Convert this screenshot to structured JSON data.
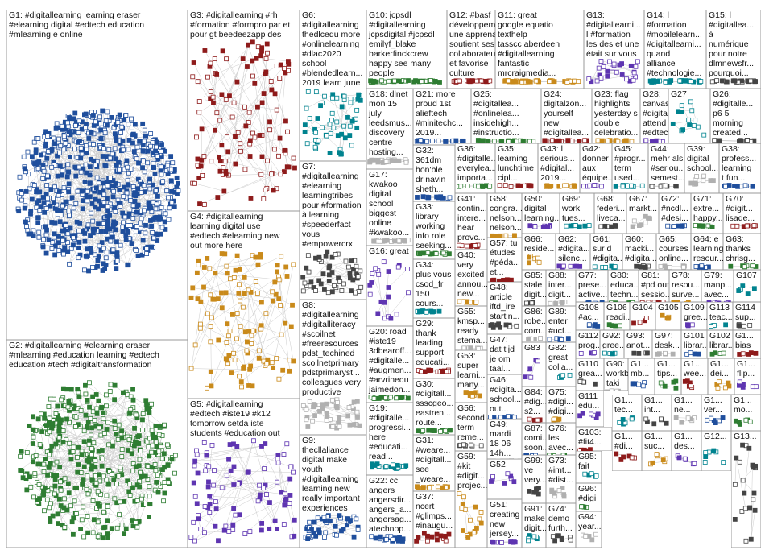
{
  "groups": [
    {
      "lines": [
        "G1: #digitallearning learning eraser",
        "#elearning digital #edtech education",
        "#mlearning e online"
      ]
    },
    {
      "lines": [
        "G2: #digitallearning #elearning eraser",
        "#mlearning #education learning #edtech",
        "education #tech #digitaltransformation"
      ]
    },
    {
      "lines": [
        "G3: #digitallearning #rh",
        "#formation #formpro par et",
        "pour gt beedeezapp des"
      ]
    },
    {
      "lines": [
        "G4: #digitallearning",
        "learning digital use",
        "#edtech #elearning new",
        "out more here"
      ]
    },
    {
      "lines": [
        "G5: #digitallearning",
        "#edtech #iste19 #k12",
        "tomorrow setda iste",
        "students #education out"
      ]
    },
    {
      "lines": [
        "G6:",
        "#digitallearning",
        "thedlcedu more",
        "#onlinelearning",
        "#dlac2020",
        "school",
        "#blendedlearn...",
        "2019 learn june"
      ]
    },
    {
      "lines": [
        "G7:",
        "#digitallearning",
        "#elearning",
        "learningtribes",
        "pour #formation",
        "à learning",
        "#speederfact",
        "vous",
        "#empowercrx"
      ]
    },
    {
      "lines": [
        "G8:",
        "#digitallearning",
        "#digitalliteracy",
        "#scoilnet",
        "#freeresources",
        "pdst_techined",
        "scoilnetprimary",
        "pdstprimaryst...",
        "colleagues very",
        "productive"
      ]
    },
    {
      "lines": [
        "G9:",
        "thecllaliance",
        "digital make",
        "youth",
        "#digitallearning",
        "learning new",
        "really important",
        "experiences"
      ]
    },
    {
      "lines": [
        "G10: jcpsdl",
        "#digitallearning",
        "jcpsdigital #jcpsdl",
        "emilyf_blake",
        "barkerfinckcrew",
        "happy see many",
        "people"
      ]
    },
    {
      "lines": [
        "G12: #basf",
        "développement",
        "une apprenante",
        "soutient ses",
        "collaborateurs",
        "et favorise",
        "culture"
      ]
    },
    {
      "lines": [
        "G11: great",
        "google equatio",
        "texthelp",
        "tasscc aberdeen",
        "#digitallearning",
        "fantastic",
        "mrcraigmedia..."
      ]
    },
    {
      "lines": [
        "G13:",
        "#digitallearni...",
        "l #formation",
        "les des et une",
        "était sur vous"
      ]
    },
    {
      "lines": [
        "G14: l",
        "#formation",
        "#mobilelearn...",
        "#digitallearni...",
        "quand",
        "alliance",
        "#technologie..."
      ]
    },
    {
      "lines": [
        "G15: l",
        "#digitallea...",
        "à",
        "numérique",
        "pour notre",
        "dlmnewsfr...",
        "pourquoi..."
      ]
    },
    {
      "lines": [
        "G18: dlnet",
        "mon 15",
        "july",
        "leedsmus...",
        "discovery",
        "centre",
        "hosting..."
      ]
    },
    {
      "lines": [
        "G21: more",
        "proud 1st",
        "alieftech",
        "#minitechc...",
        "2019..."
      ]
    },
    {
      "lines": [
        "G25:",
        "#digitallea...",
        "#onlinelea...",
        "insidehigh...",
        "#instructio..."
      ]
    },
    {
      "lines": [
        "G24:",
        "digitalzon...",
        "yourself",
        "new",
        "#digitallea..."
      ]
    },
    {
      "lines": [
        "G23: flag",
        "highlights",
        "yesterday s",
        "double",
        "celebratio..."
      ]
    },
    {
      "lines": [
        "G28:",
        "canvaslms",
        "#digitallea...",
        "attend one",
        "#edtech"
      ]
    },
    {
      "lines": [
        "G27"
      ]
    },
    {
      "lines": [
        "G26:",
        "#digitalle...",
        "p6 5",
        "morning",
        "created..."
      ]
    },
    {
      "lines": [
        "G17:",
        "kwakoo",
        "digital",
        "school",
        "biggest",
        "online",
        "#kwakoo..."
      ]
    },
    {
      "lines": [
        "G32:",
        "361dm",
        "hon'ble",
        "dr navin",
        "sheth..."
      ]
    },
    {
      "lines": [
        "G36:",
        "#digitalle...",
        "everylea...",
        "importa..."
      ]
    },
    {
      "lines": [
        "G35:",
        "learning",
        "lunchtime",
        "cipl..."
      ]
    },
    {
      "lines": [
        "G43: l",
        "serious...",
        "#digital...",
        "2019..."
      ]
    },
    {
      "lines": [
        "G42:",
        "donner",
        "aux",
        "équipe..."
      ]
    },
    {
      "lines": [
        "G45:",
        "#progr...",
        "term",
        "used..."
      ]
    },
    {
      "lines": [
        "G44:",
        "mehr als",
        "#seriou...",
        "semest..."
      ]
    },
    {
      "lines": [
        "G39:",
        "digital",
        "school..."
      ]
    },
    {
      "lines": [
        "G38:",
        "profess...",
        "learning",
        "t fun..."
      ]
    },
    {
      "lines": [
        "G33:",
        "library",
        "working",
        "info role",
        "seeking..."
      ]
    },
    {
      "lines": [
        "G41:",
        "contin...",
        "intere...",
        "hear",
        "provc..."
      ]
    },
    {
      "lines": [
        "G58:",
        "congra...",
        "nelson...",
        "nelson..."
      ]
    },
    {
      "lines": [
        "G50:",
        "digital",
        "learning..."
      ]
    },
    {
      "lines": [
        "G69:",
        "work",
        "tues..."
      ]
    },
    {
      "lines": [
        "G68:",
        "federi...",
        "liveca..."
      ]
    },
    {
      "lines": [
        "G67:",
        "markt..."
      ]
    },
    {
      "lines": [
        "G72:",
        "#ncdl...",
        "#desi..."
      ]
    },
    {
      "lines": [
        "G71:",
        "extre...",
        "happy..."
      ]
    },
    {
      "lines": [
        "G70:",
        "#digit...",
        "lisade..."
      ]
    },
    {
      "lines": [
        "G66:",
        "reside..."
      ]
    },
    {
      "lines": [
        "G62:",
        "#digita...",
        "silenc..."
      ]
    },
    {
      "lines": [
        "G61:",
        "sur d",
        "#digita..."
      ]
    },
    {
      "lines": [
        "G60:",
        "macki...",
        "#digita..."
      ]
    },
    {
      "lines": [
        "G65:",
        "courses",
        "online..."
      ]
    },
    {
      "lines": [
        "G64: e",
        "learning",
        "resour..."
      ]
    },
    {
      "lines": [
        "G63:",
        "thanks",
        "chrisg..."
      ]
    },
    {
      "lines": [
        "G57: tu",
        "études",
        "#péda...",
        "et..."
      ]
    },
    {
      "lines": [
        "G40:",
        "very",
        "excited",
        "annou...",
        "new..."
      ]
    },
    {
      "lines": [
        "G16: great"
      ]
    },
    {
      "lines": [
        "G34:",
        "plus vous",
        "csod_fr",
        "150",
        "cours..."
      ]
    },
    {
      "lines": [
        "G85:",
        "stale",
        "digit..."
      ]
    },
    {
      "lines": [
        "G88:",
        "inter...",
        "digit..."
      ]
    },
    {
      "lines": [
        "G77:",
        "prese...",
        "active..."
      ]
    },
    {
      "lines": [
        "G80:",
        "educa...",
        "techn..."
      ]
    },
    {
      "lines": [
        "G81:",
        "#pd out",
        "sessio..."
      ]
    },
    {
      "lines": [
        "G78:",
        "resou...",
        "surve..."
      ]
    },
    {
      "lines": [
        "G79:",
        "manp...",
        "avec..."
      ]
    },
    {
      "lines": [
        "G107"
      ]
    },
    {
      "lines": [
        "G48:",
        "article",
        "iftd_ire",
        "startin..."
      ]
    },
    {
      "lines": [
        "G55:",
        "kmsp...",
        "ready",
        "stema..."
      ]
    },
    {
      "lines": [
        "G108",
        "#ac..."
      ]
    },
    {
      "lines": [
        "G106",
        "readi..."
      ]
    },
    {
      "lines": [
        "G104"
      ]
    },
    {
      "lines": [
        "G105"
      ]
    },
    {
      "lines": [
        "G109",
        "gree..."
      ]
    },
    {
      "lines": [
        "G113",
        "teac..."
      ]
    },
    {
      "lines": [
        "G114",
        "sup..."
      ]
    },
    {
      "lines": [
        "G86:",
        "robe...",
        "com..."
      ]
    },
    {
      "lines": [
        "G89:",
        "enter",
        "#ucf..."
      ]
    },
    {
      "lines": [
        "G20: road",
        "#iste19",
        "3dbearoff...",
        "#digitalle...",
        "#augmen...",
        "#arvrinedu",
        "jaimedon..."
      ]
    },
    {
      "lines": [
        "G29:",
        "thank",
        "leading",
        "support",
        "educati..."
      ]
    },
    {
      "lines": [
        "G47:",
        "dat tijd",
        "je om",
        "taal..."
      ]
    },
    {
      "lines": [
        "G112",
        "prog..."
      ]
    },
    {
      "lines": [
        "G92:",
        "gree..."
      ]
    },
    {
      "lines": [
        "G93:",
        "anot..."
      ]
    },
    {
      "lines": [
        "G97:",
        "desk..."
      ]
    },
    {
      "lines": [
        "G101",
        "librar..."
      ]
    },
    {
      "lines": [
        "G102",
        "librar..."
      ]
    },
    {
      "lines": [
        "G1...",
        "bias"
      ]
    },
    {
      "lines": [
        "G53:",
        "super",
        "learni...",
        "many..."
      ]
    },
    {
      "lines": [
        "G83"
      ]
    },
    {
      "lines": [
        "G82:",
        "great",
        "colla..."
      ]
    },
    {
      "lines": [
        "G110",
        "grea..."
      ]
    },
    {
      "lines": [
        "G90:",
        "workb...",
        "taki"
      ]
    },
    {
      "lines": [
        "G46:",
        "#digita...",
        "school...",
        "out..."
      ]
    },
    {
      "lines": [
        "G30:",
        "#digitall...",
        "ssscgeo...",
        "eastren...",
        "route..."
      ]
    },
    {
      "lines": [
        "G84:",
        "#dig...",
        "s2..."
      ]
    },
    {
      "lines": [
        "G75:",
        "#digi...",
        "#digi..."
      ]
    },
    {
      "lines": [
        "G111",
        "edu..."
      ]
    },
    {
      "lines": [
        "G19:",
        "#digitalle...",
        "progressi...",
        "here",
        "#educati...",
        "read..."
      ]
    },
    {
      "lines": [
        "G56:",
        "second",
        "term",
        "reme..."
      ]
    },
    {
      "lines": [
        "G49:",
        "mardi",
        "18 06",
        "14h..."
      ]
    },
    {
      "lines": [
        "G87:",
        "comi...",
        "soon..."
      ]
    },
    {
      "lines": [
        "G76:",
        "les",
        "avec..."
      ]
    },
    {
      "lines": [
        "G103:",
        "#fit4..."
      ]
    },
    {
      "lines": [
        "G31:",
        "#weare...",
        "#digitall...",
        "see",
        "_weare..."
      ]
    },
    {
      "lines": [
        "G52"
      ]
    },
    {
      "lines": [
        "G95:",
        "fait"
      ]
    },
    {
      "lines": [
        "G99:",
        "ve",
        "very..."
      ]
    },
    {
      "lines": [
        "G73:",
        "#imt...",
        "#dist..."
      ]
    },
    {
      "lines": [
        "G22: cc",
        "angers",
        "angersdir...",
        "angers_a...",
        "angersag...",
        "atechnop..."
      ]
    },
    {
      "lines": [
        "G96:",
        "#digi"
      ]
    },
    {
      "lines": [
        "G37:",
        "ncert",
        "#glimps...",
        "#inaugu..."
      ]
    },
    {
      "lines": [
        "G59:",
        "#kit",
        "#digit...",
        "projec..."
      ]
    },
    {
      "lines": [
        "G51:",
        "creating",
        "new",
        "jersey..."
      ]
    },
    {
      "lines": [
        "G91:",
        "make",
        "digit..."
      ]
    },
    {
      "lines": [
        "G74:",
        "demo",
        "furth..."
      ]
    },
    {
      "lines": [
        "G94:",
        "year..."
      ]
    },
    {
      "lines": [
        "G1...",
        "mb..."
      ]
    },
    {
      "lines": [
        "G1...",
        "tips..."
      ]
    },
    {
      "lines": [
        "G1...",
        "wee..."
      ]
    },
    {
      "lines": [
        "G1...",
        "dei..."
      ]
    },
    {
      "lines": [
        "G1...",
        "flip..."
      ]
    },
    {
      "lines": [
        "G1...",
        "tec..."
      ]
    },
    {
      "lines": [
        "G1...",
        "int..."
      ]
    },
    {
      "lines": [
        "G1...",
        "ne..."
      ]
    },
    {
      "lines": [
        "G1...",
        "ver..."
      ]
    },
    {
      "lines": [
        "G1...",
        "mo..."
      ]
    },
    {
      "lines": [
        "G1...",
        "#di..."
      ]
    },
    {
      "lines": [
        "G1...",
        "suc..."
      ]
    },
    {
      "lines": [
        "G1...",
        "des..."
      ]
    },
    {
      "lines": [
        "G12..."
      ]
    },
    {
      "lines": [
        "G13..."
      ]
    }
  ]
}
